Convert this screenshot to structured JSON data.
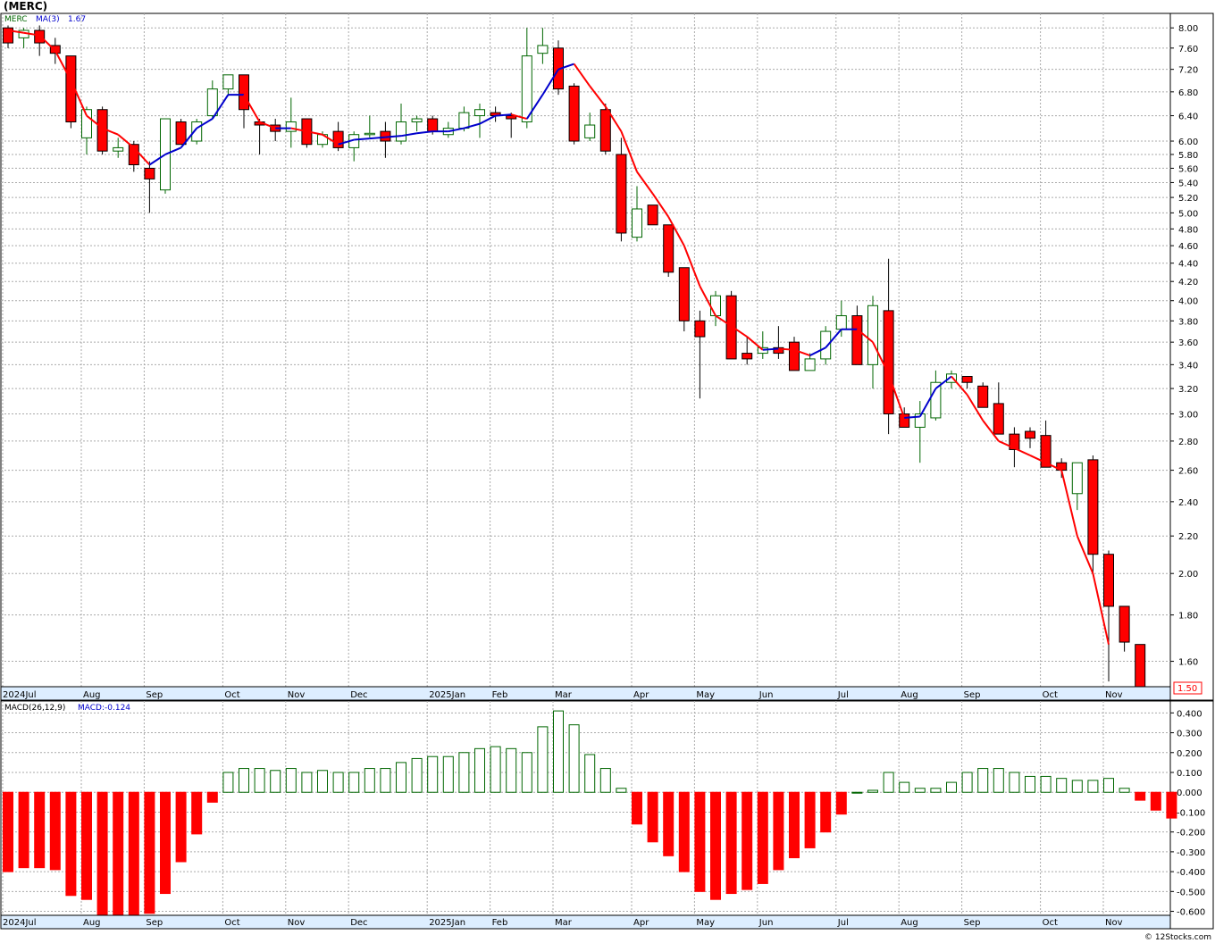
{
  "header": {
    "title": "(MERC)",
    "credit": "© 12Stocks.com"
  },
  "legend": {
    "ticker": "MERC",
    "ma_label": "MA(3)",
    "ma_value": "1.67",
    "macd_label": "MACD(26,12,9)",
    "macd_value_label": "MACD:-0.124",
    "last_price": "1.50"
  },
  "colors": {
    "up": "#006600",
    "down": "#ff0000",
    "ma_up": "#0000cc",
    "ma_down": "#ff0000",
    "axis_bg": "#ddeeff",
    "grid": "#aaaaaa"
  },
  "chart_data": [
    {
      "type": "candlestick",
      "interval": "weekly",
      "y_scale": "log",
      "ylim": [
        1.5,
        8.3
      ],
      "y_ticks": [
        "8.00",
        "7.60",
        "7.20",
        "6.80",
        "6.40",
        "6.00",
        "5.80",
        "5.60",
        "5.40",
        "5.20",
        "5.00",
        "4.80",
        "4.60",
        "4.40",
        "4.20",
        "4.00",
        "3.80",
        "3.60",
        "3.40",
        "3.20",
        "3.00",
        "2.80",
        "2.60",
        "2.40",
        "2.20",
        "2.00",
        "1.80",
        "1.60"
      ],
      "x_labels": [
        "2024Jul",
        "Aug",
        "Sep",
        "Oct",
        "Nov",
        "Dec",
        "2025Jan",
        "Feb",
        "Mar",
        "Apr",
        "May",
        "Jun",
        "Jul",
        "Aug",
        "Sep",
        "Oct",
        "Nov"
      ],
      "x_label_week_index": [
        0,
        5,
        9,
        14,
        18,
        22,
        27,
        31,
        35,
        40,
        44,
        48,
        53,
        57,
        61,
        66,
        70
      ],
      "series_ma": {
        "name": "MA(3)",
        "values": [
          7.95,
          7.9,
          7.85,
          7.55,
          7.0,
          6.4,
          6.2,
          6.1,
          5.9,
          5.65,
          5.8,
          5.9,
          6.2,
          6.35,
          6.75,
          6.75,
          6.3,
          6.2,
          6.2,
          6.15,
          6.1,
          5.95,
          6.02,
          6.04,
          6.06,
          6.08,
          6.12,
          6.15,
          6.15,
          6.2,
          6.27,
          6.4,
          6.42,
          6.35,
          6.75,
          7.2,
          7.3,
          6.9,
          6.55,
          6.15,
          5.55,
          5.25,
          4.95,
          4.6,
          4.15,
          3.85,
          3.75,
          3.65,
          3.53,
          3.54,
          3.53,
          3.48,
          3.55,
          3.72,
          3.72,
          3.6,
          3.32,
          2.97,
          2.98,
          3.2,
          3.3,
          3.15,
          2.95,
          2.8,
          2.75,
          2.7,
          2.65,
          2.6,
          2.2,
          2.0,
          1.67
        ]
      },
      "candles": [
        {
          "o": 8.0,
          "h": 8.05,
          "l": 7.6,
          "c": 7.7
        },
        {
          "o": 7.8,
          "h": 8.0,
          "l": 7.6,
          "c": 7.95
        },
        {
          "o": 7.95,
          "h": 8.05,
          "l": 7.45,
          "c": 7.7
        },
        {
          "o": 7.65,
          "h": 7.8,
          "l": 7.3,
          "c": 7.5
        },
        {
          "o": 7.45,
          "h": 7.45,
          "l": 6.2,
          "c": 6.3
        },
        {
          "o": 6.05,
          "h": 6.55,
          "l": 5.8,
          "c": 6.5
        },
        {
          "o": 6.5,
          "h": 6.55,
          "l": 5.8,
          "c": 5.85
        },
        {
          "o": 5.85,
          "h": 6.05,
          "l": 5.75,
          "c": 5.9
        },
        {
          "o": 5.95,
          "h": 6.0,
          "l": 5.55,
          "c": 5.65
        },
        {
          "o": 5.6,
          "h": 5.7,
          "l": 5.0,
          "c": 5.45
        },
        {
          "o": 5.3,
          "h": 6.35,
          "l": 5.25,
          "c": 6.35
        },
        {
          "o": 6.3,
          "h": 6.35,
          "l": 5.95,
          "c": 5.95
        },
        {
          "o": 6.0,
          "h": 6.35,
          "l": 5.95,
          "c": 6.3
        },
        {
          "o": 6.4,
          "h": 7.0,
          "l": 6.35,
          "c": 6.85
        },
        {
          "o": 6.85,
          "h": 7.1,
          "l": 6.75,
          "c": 7.1
        },
        {
          "o": 7.1,
          "h": 7.1,
          "l": 6.2,
          "c": 6.5
        },
        {
          "o": 6.3,
          "h": 6.35,
          "l": 5.8,
          "c": 6.25
        },
        {
          "o": 6.25,
          "h": 6.35,
          "l": 6.0,
          "c": 6.15
        },
        {
          "o": 6.15,
          "h": 6.7,
          "l": 5.9,
          "c": 6.3
        },
        {
          "o": 6.35,
          "h": 6.35,
          "l": 5.9,
          "c": 5.95
        },
        {
          "o": 5.95,
          "h": 6.15,
          "l": 5.9,
          "c": 6.1
        },
        {
          "o": 6.15,
          "h": 6.3,
          "l": 5.85,
          "c": 5.9
        },
        {
          "o": 5.9,
          "h": 6.15,
          "l": 5.7,
          "c": 6.1
        },
        {
          "o": 6.1,
          "h": 6.4,
          "l": 6.05,
          "c": 6.12
        },
        {
          "o": 6.15,
          "h": 6.3,
          "l": 5.75,
          "c": 6.0
        },
        {
          "o": 6.0,
          "h": 6.6,
          "l": 5.95,
          "c": 6.3
        },
        {
          "o": 6.3,
          "h": 6.4,
          "l": 6.15,
          "c": 6.35
        },
        {
          "o": 6.35,
          "h": 6.4,
          "l": 6.1,
          "c": 6.15
        },
        {
          "o": 6.1,
          "h": 6.3,
          "l": 6.05,
          "c": 6.2
        },
        {
          "o": 6.2,
          "h": 6.55,
          "l": 6.15,
          "c": 6.45
        },
        {
          "o": 6.4,
          "h": 6.6,
          "l": 6.05,
          "c": 6.5
        },
        {
          "o": 6.45,
          "h": 6.55,
          "l": 6.3,
          "c": 6.4
        },
        {
          "o": 6.4,
          "h": 6.45,
          "l": 6.05,
          "c": 6.35
        },
        {
          "o": 6.3,
          "h": 8.0,
          "l": 6.2,
          "c": 7.45
        },
        {
          "o": 7.5,
          "h": 8.0,
          "l": 7.3,
          "c": 7.65
        },
        {
          "o": 7.6,
          "h": 7.75,
          "l": 6.75,
          "c": 6.85
        },
        {
          "o": 6.9,
          "h": 6.95,
          "l": 5.95,
          "c": 6.0
        },
        {
          "o": 6.05,
          "h": 6.45,
          "l": 6.0,
          "c": 6.25
        },
        {
          "o": 6.5,
          "h": 6.6,
          "l": 5.8,
          "c": 5.85
        },
        {
          "o": 5.8,
          "h": 6.05,
          "l": 4.65,
          "c": 4.75
        },
        {
          "o": 4.7,
          "h": 5.35,
          "l": 4.65,
          "c": 5.05
        },
        {
          "o": 5.1,
          "h": 5.1,
          "l": 4.85,
          "c": 4.85
        },
        {
          "o": 4.85,
          "h": 4.85,
          "l": 4.25,
          "c": 4.3
        },
        {
          "o": 4.35,
          "h": 4.35,
          "l": 3.7,
          "c": 3.8
        },
        {
          "o": 3.8,
          "h": 3.9,
          "l": 3.12,
          "c": 3.65
        },
        {
          "o": 3.85,
          "h": 4.1,
          "l": 3.75,
          "c": 4.05
        },
        {
          "o": 4.05,
          "h": 4.1,
          "l": 3.45,
          "c": 3.45
        },
        {
          "o": 3.5,
          "h": 3.65,
          "l": 3.4,
          "c": 3.45
        },
        {
          "o": 3.5,
          "h": 3.7,
          "l": 3.45,
          "c": 3.55
        },
        {
          "o": 3.55,
          "h": 3.75,
          "l": 3.45,
          "c": 3.5
        },
        {
          "o": 3.6,
          "h": 3.65,
          "l": 3.35,
          "c": 3.35
        },
        {
          "o": 3.35,
          "h": 3.5,
          "l": 3.35,
          "c": 3.45
        },
        {
          "o": 3.45,
          "h": 3.75,
          "l": 3.4,
          "c": 3.7
        },
        {
          "o": 3.72,
          "h": 4.0,
          "l": 3.65,
          "c": 3.85
        },
        {
          "o": 3.85,
          "h": 3.95,
          "l": 3.4,
          "c": 3.4
        },
        {
          "o": 3.4,
          "h": 4.05,
          "l": 3.2,
          "c": 3.95
        },
        {
          "o": 3.9,
          "h": 4.45,
          "l": 2.85,
          "c": 3.0
        },
        {
          "o": 3.0,
          "h": 3.05,
          "l": 2.9,
          "c": 2.9
        },
        {
          "o": 2.9,
          "h": 3.1,
          "l": 2.65,
          "c": 3.0
        },
        {
          "o": 2.97,
          "h": 3.35,
          "l": 2.95,
          "c": 3.25
        },
        {
          "o": 3.25,
          "h": 3.35,
          "l": 3.2,
          "c": 3.32
        },
        {
          "o": 3.3,
          "h": 3.3,
          "l": 3.2,
          "c": 3.25
        },
        {
          "o": 3.22,
          "h": 3.25,
          "l": 3.05,
          "c": 3.05
        },
        {
          "o": 3.08,
          "h": 3.25,
          "l": 2.85,
          "c": 2.85
        },
        {
          "o": 2.85,
          "h": 2.9,
          "l": 2.62,
          "c": 2.74
        },
        {
          "o": 2.87,
          "h": 2.9,
          "l": 2.75,
          "c": 2.82
        },
        {
          "o": 2.84,
          "h": 2.95,
          "l": 2.62,
          "c": 2.62
        },
        {
          "o": 2.65,
          "h": 2.68,
          "l": 2.55,
          "c": 2.6
        },
        {
          "o": 2.45,
          "h": 2.65,
          "l": 2.35,
          "c": 2.65
        },
        {
          "o": 2.67,
          "h": 2.7,
          "l": 2.0,
          "c": 2.1
        },
        {
          "o": 2.1,
          "h": 2.12,
          "l": 1.52,
          "c": 1.84
        },
        {
          "o": 1.84,
          "h": 1.84,
          "l": 1.64,
          "c": 1.68
        },
        {
          "o": 1.67,
          "h": 1.67,
          "l": 1.5,
          "c": 1.5
        }
      ]
    },
    {
      "type": "bar",
      "name": "MACD(26,12,9)",
      "ylim": [
        -0.62,
        0.46
      ],
      "y_ticks": [
        "0.400",
        "0.300",
        "0.200",
        "0.100",
        "0.000",
        "-0.100",
        "-0.200",
        "-0.300",
        "-0.400",
        "-0.500",
        "-0.600"
      ],
      "values": [
        -0.4,
        -0.38,
        -0.38,
        -0.39,
        -0.52,
        -0.54,
        -0.62,
        -0.62,
        -0.62,
        -0.61,
        -0.51,
        -0.35,
        -0.21,
        -0.05,
        0.1,
        0.12,
        0.12,
        0.11,
        0.12,
        0.1,
        0.11,
        0.1,
        0.1,
        0.12,
        0.12,
        0.15,
        0.17,
        0.18,
        0.18,
        0.2,
        0.22,
        0.23,
        0.22,
        0.2,
        0.33,
        0.41,
        0.34,
        0.19,
        0.12,
        0.02,
        -0.16,
        -0.25,
        -0.32,
        -0.4,
        -0.5,
        -0.54,
        -0.51,
        -0.49,
        -0.46,
        -0.39,
        -0.33,
        -0.28,
        -0.2,
        -0.11,
        0.0,
        0.01,
        0.1,
        0.05,
        0.02,
        0.02,
        0.05,
        0.1,
        0.12,
        0.12,
        0.1,
        0.08,
        0.08,
        0.07,
        0.06,
        0.06,
        0.07,
        0.02,
        -0.04,
        -0.09,
        -0.13
      ]
    }
  ]
}
